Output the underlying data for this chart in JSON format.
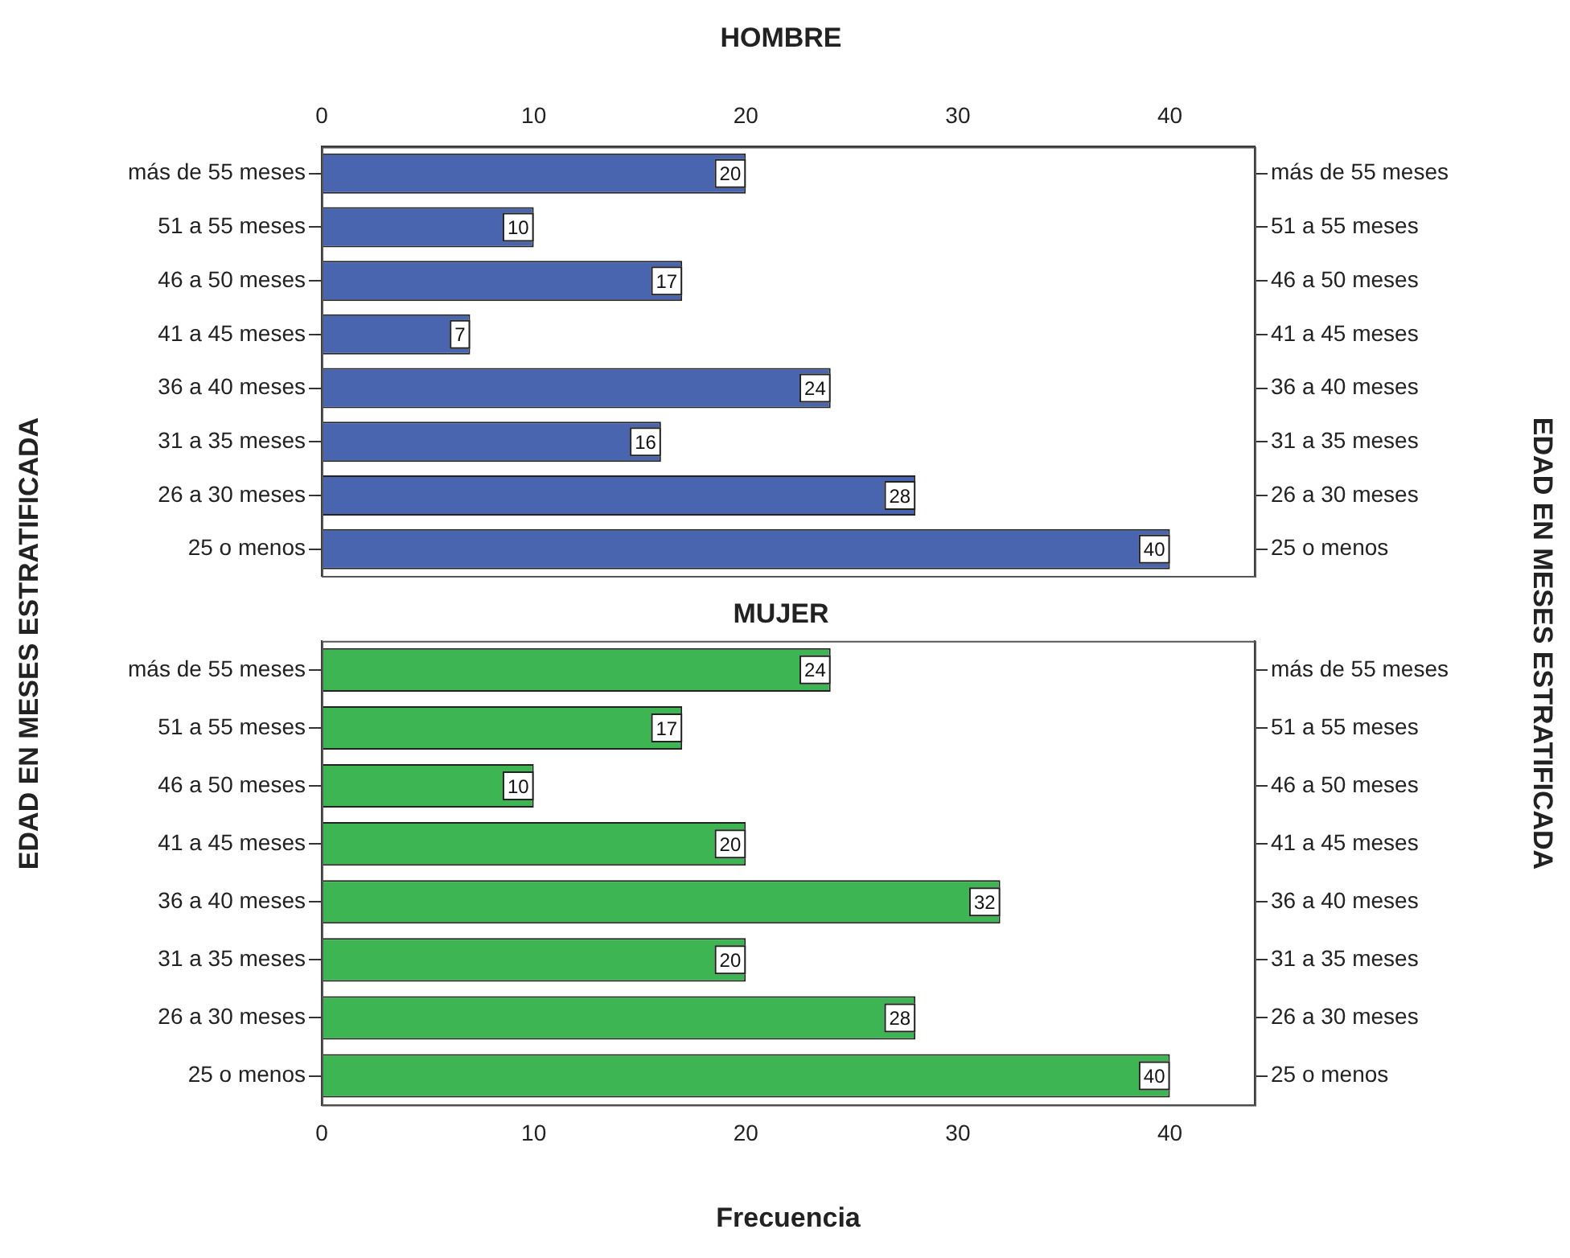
{
  "chart_data": [
    {
      "type": "bar",
      "orientation": "horizontal",
      "title": "HOMBRE",
      "ylabel": "EDAD EN MESES ESTRATIFICADA",
      "y2label": "EDAD EN MESES ESTRATIFICADA",
      "categories": [
        "más de 55 meses",
        "51 a 55 meses",
        "46 a 50 meses",
        "41 a 45 meses",
        "36 a 40 meses",
        "31 a 35 meses",
        "26 a 30 meses",
        "25 o menos"
      ],
      "values": [
        20,
        10,
        17,
        7,
        24,
        16,
        28,
        40
      ],
      "color": "#4a65b0",
      "xlim": [
        0,
        44
      ],
      "xticks": [
        0,
        10,
        20,
        30,
        40
      ],
      "data_labels": true,
      "grid": false,
      "legend": false
    },
    {
      "type": "bar",
      "orientation": "horizontal",
      "title": "MUJER",
      "xlabel": "Frecuencia",
      "categories": [
        "más de 55 meses",
        "51 a 55 meses",
        "46 a 50 meses",
        "41 a 45 meses",
        "36 a 40 meses",
        "31 a 35 meses",
        "26 a 30 meses",
        "25 o menos"
      ],
      "values": [
        24,
        17,
        10,
        20,
        32,
        20,
        28,
        40
      ],
      "color": "#3db552",
      "xlim": [
        0,
        44
      ],
      "xticks": [
        0,
        10,
        20,
        30,
        40
      ],
      "data_labels": true,
      "grid": false,
      "legend": false
    }
  ]
}
